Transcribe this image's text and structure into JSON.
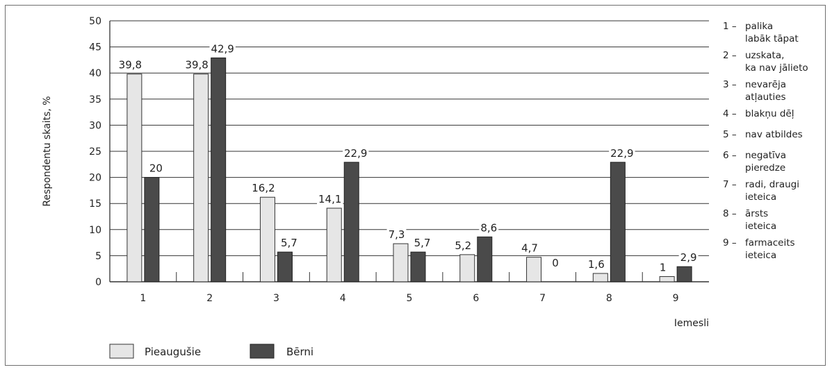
{
  "colors": {
    "adults": "#e6e6e6",
    "children": "#4a4a4a",
    "grid": "#333333",
    "frame": "#6e6e6e"
  },
  "chart_data": {
    "type": "bar",
    "categories": [
      "1",
      "2",
      "3",
      "4",
      "5",
      "6",
      "7",
      "8",
      "9"
    ],
    "series": [
      {
        "name": "Pieaugušie",
        "values": [
          39.8,
          39.8,
          16.2,
          14.1,
          7.3,
          5.2,
          4.7,
          1.6,
          1
        ],
        "labels": [
          "39,8",
          "39,8",
          "16,2",
          "14,1",
          "7,3",
          "5,2",
          "4,7",
          "1,6",
          "1"
        ]
      },
      {
        "name": "Bērni",
        "values": [
          20,
          42.9,
          5.7,
          22.9,
          5.7,
          8.6,
          0,
          22.9,
          2.9
        ],
        "labels": [
          "20",
          "42,9",
          "5,7",
          "22,9",
          "5,7",
          "8,6",
          "0",
          "22,9",
          "2,9"
        ]
      }
    ],
    "ylabel": "Respondentu skaits, %",
    "xlabel": "Iemesli",
    "ylim": [
      0,
      50
    ],
    "yticks": [
      0,
      5,
      10,
      15,
      20,
      25,
      30,
      35,
      40,
      45,
      50
    ],
    "grid": true,
    "legend_position": "bottom-left"
  },
  "reasons": [
    {
      "num": "1",
      "lines": [
        "palika",
        "labāk tāpat"
      ]
    },
    {
      "num": "2",
      "lines": [
        "uzskata,",
        "ka nav jālieto"
      ]
    },
    {
      "num": "3",
      "lines": [
        "nevarēja",
        "atļauties"
      ]
    },
    {
      "num": "4",
      "lines": [
        "blakņu dēļ"
      ]
    },
    {
      "num": "5",
      "lines": [
        "nav atbildes"
      ]
    },
    {
      "num": "6",
      "lines": [
        "negatīva",
        "pieredze"
      ]
    },
    {
      "num": "7",
      "lines": [
        "radi, draugi",
        "ieteica"
      ]
    },
    {
      "num": "8",
      "lines": [
        "ārsts",
        "ieteica"
      ]
    },
    {
      "num": "9",
      "lines": [
        "farmaceits",
        "ieteica"
      ]
    }
  ]
}
